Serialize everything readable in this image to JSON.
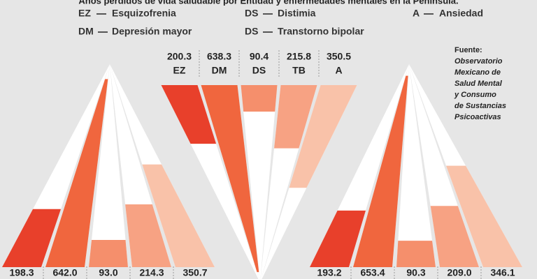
{
  "title": "Años perdidos de vida saludable por Entidad y enfermedades mentales en la Península.",
  "legend": [
    {
      "code": "EZ",
      "label": "Esquizofrenia"
    },
    {
      "code": "DM",
      "label": "Depresión mayor"
    },
    {
      "code": "DS",
      "label": "Distimia"
    },
    {
      "code": "DS",
      "label": "Transtorno bipolar"
    },
    {
      "code": "A",
      "label": "Ansiedad"
    }
  ],
  "colors": [
    "#e8402b",
    "#f0663e",
    "#f58f6c",
    "#f7a283",
    "#f9c2a9"
  ],
  "source": {
    "heading": "Fuente:",
    "lines": [
      "Observatorio",
      "Mexicano de",
      "Salud Mental",
      "y Consumo",
      "de Sustancias",
      "Psicoactivas"
    ]
  },
  "groups": [
    {
      "values": [
        198.3,
        642.0,
        93.0,
        214.3,
        350.7
      ],
      "value_labels": [
        "198.3",
        "642.0",
        "93.0",
        "214.3",
        "350.7"
      ]
    },
    {
      "values": [
        200.3,
        638.3,
        90.4,
        215.8,
        350.5
      ],
      "value_labels": [
        "200.3",
        "638.3",
        "90.4",
        "215.8",
        "350.5"
      ],
      "categories": [
        "EZ",
        "DM",
        "DS",
        "TB",
        "A"
      ]
    },
    {
      "values": [
        193.2,
        653.4,
        90.3,
        209.0,
        346.1
      ],
      "value_labels": [
        "193.2",
        "653.4",
        "90.3",
        "209.0",
        "346.1"
      ]
    }
  ]
}
